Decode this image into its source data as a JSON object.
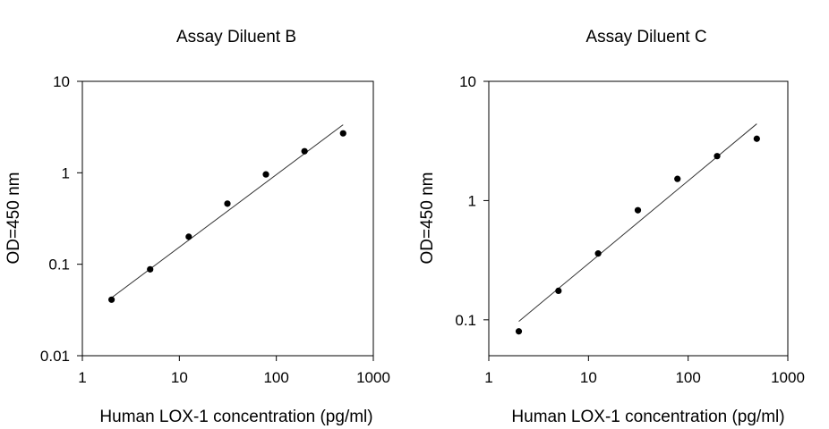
{
  "chart_data": [
    {
      "type": "scatter",
      "title": "Assay Diluent B",
      "xlabel": "Human LOX-1 concentration (pg/ml)",
      "ylabel": "OD=450 nm",
      "x_scale": "log",
      "y_scale": "log",
      "xlim": [
        1,
        1000
      ],
      "ylim": [
        0.01,
        10
      ],
      "x_ticks": [
        "1",
        "10",
        "100",
        "1000"
      ],
      "y_ticks": [
        "0.01",
        "0.1",
        "1",
        "10"
      ],
      "grid": false,
      "series": [
        {
          "x": [
            2,
            5,
            12.5,
            31.3,
            78.1,
            195.3,
            488.3
          ],
          "y": [
            0.041,
            0.088,
            0.2,
            0.46,
            0.96,
            1.72,
            2.7
          ]
        }
      ],
      "fit_line": {
        "x": [
          2,
          488.3
        ],
        "y": [
          0.043,
          3.35
        ]
      }
    },
    {
      "type": "scatter",
      "title": "Assay Diluent C",
      "xlabel": "Human LOX-1 concentration (pg/ml)",
      "ylabel": "OD=450 nm",
      "x_scale": "log",
      "y_scale": "log",
      "xlim": [
        1,
        1000
      ],
      "ylim": [
        0.05,
        10
      ],
      "x_ticks": [
        "1",
        "10",
        "100",
        "1000"
      ],
      "y_ticks": [
        "0.1",
        "1",
        "10"
      ],
      "grid": false,
      "series": [
        {
          "x": [
            2,
            5,
            12.5,
            31.3,
            78.1,
            195.3,
            488.3
          ],
          "y": [
            0.08,
            0.175,
            0.36,
            0.83,
            1.52,
            2.36,
            3.3
          ]
        }
      ],
      "fit_line": {
        "x": [
          2,
          488.3
        ],
        "y": [
          0.097,
          4.4
        ]
      }
    }
  ]
}
